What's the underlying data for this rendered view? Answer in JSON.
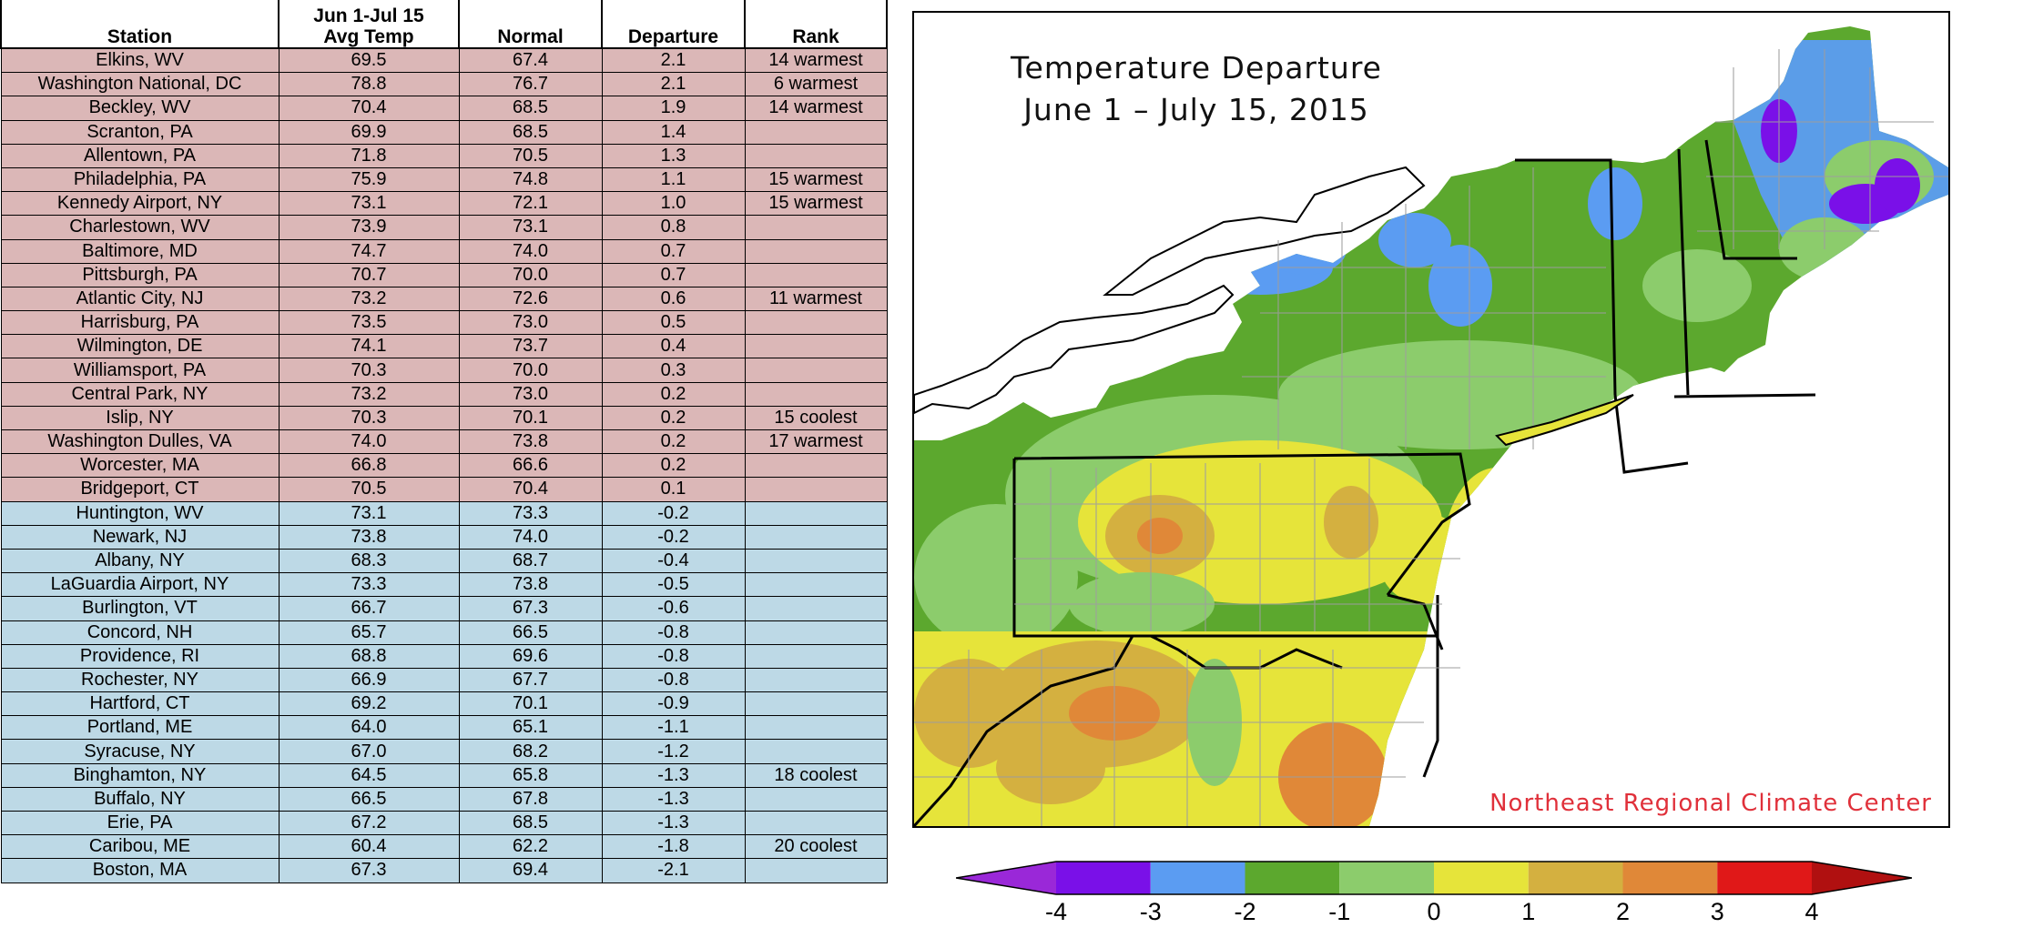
{
  "table": {
    "headers": {
      "station": "Station",
      "avg_line1": "Jun 1-Jul 15",
      "avg_line2": "Avg Temp",
      "normal": "Normal",
      "departure": "Departure",
      "rank": "Rank"
    },
    "rows": [
      {
        "station": "Elkins, WV",
        "avg": "69.5",
        "normal": "67.4",
        "departure": "2.1",
        "rank": "14 warmest",
        "group": "warm"
      },
      {
        "station": "Washington National, DC",
        "avg": "78.8",
        "normal": "76.7",
        "departure": "2.1",
        "rank": "6 warmest",
        "group": "warm"
      },
      {
        "station": "Beckley, WV",
        "avg": "70.4",
        "normal": "68.5",
        "departure": "1.9",
        "rank": "14 warmest",
        "group": "warm"
      },
      {
        "station": "Scranton, PA",
        "avg": "69.9",
        "normal": "68.5",
        "departure": "1.4",
        "rank": "",
        "group": "warm"
      },
      {
        "station": "Allentown, PA",
        "avg": "71.8",
        "normal": "70.5",
        "departure": "1.3",
        "rank": "",
        "group": "warm"
      },
      {
        "station": "Philadelphia, PA",
        "avg": "75.9",
        "normal": "74.8",
        "departure": "1.1",
        "rank": "15 warmest",
        "group": "warm"
      },
      {
        "station": "Kennedy Airport, NY",
        "avg": "73.1",
        "normal": "72.1",
        "departure": "1.0",
        "rank": "15 warmest",
        "group": "warm"
      },
      {
        "station": "Charlestown, WV",
        "avg": "73.9",
        "normal": "73.1",
        "departure": "0.8",
        "rank": "",
        "group": "warm"
      },
      {
        "station": "Baltimore, MD",
        "avg": "74.7",
        "normal": "74.0",
        "departure": "0.7",
        "rank": "",
        "group": "warm"
      },
      {
        "station": "Pittsburgh, PA",
        "avg": "70.7",
        "normal": "70.0",
        "departure": "0.7",
        "rank": "",
        "group": "warm"
      },
      {
        "station": "Atlantic City, NJ",
        "avg": "73.2",
        "normal": "72.6",
        "departure": "0.6",
        "rank": "11 warmest",
        "group": "warm"
      },
      {
        "station": "Harrisburg, PA",
        "avg": "73.5",
        "normal": "73.0",
        "departure": "0.5",
        "rank": "",
        "group": "warm"
      },
      {
        "station": "Wilmington, DE",
        "avg": "74.1",
        "normal": "73.7",
        "departure": "0.4",
        "rank": "",
        "group": "warm"
      },
      {
        "station": "Williamsport, PA",
        "avg": "70.3",
        "normal": "70.0",
        "departure": "0.3",
        "rank": "",
        "group": "warm"
      },
      {
        "station": "Central Park, NY",
        "avg": "73.2",
        "normal": "73.0",
        "departure": "0.2",
        "rank": "",
        "group": "warm"
      },
      {
        "station": "Islip, NY",
        "avg": "70.3",
        "normal": "70.1",
        "departure": "0.2",
        "rank": "15 coolest",
        "group": "warm"
      },
      {
        "station": "Washington Dulles, VA",
        "avg": "74.0",
        "normal": "73.8",
        "departure": "0.2",
        "rank": "17 warmest",
        "group": "warm"
      },
      {
        "station": "Worcester, MA",
        "avg": "66.8",
        "normal": "66.6",
        "departure": "0.2",
        "rank": "",
        "group": "warm"
      },
      {
        "station": "Bridgeport, CT",
        "avg": "70.5",
        "normal": "70.4",
        "departure": "0.1",
        "rank": "",
        "group": "warm"
      },
      {
        "station": "Huntington, WV",
        "avg": "73.1",
        "normal": "73.3",
        "departure": "-0.2",
        "rank": "",
        "group": "cool"
      },
      {
        "station": "Newark, NJ",
        "avg": "73.8",
        "normal": "74.0",
        "departure": "-0.2",
        "rank": "",
        "group": "cool"
      },
      {
        "station": "Albany, NY",
        "avg": "68.3",
        "normal": "68.7",
        "departure": "-0.4",
        "rank": "",
        "group": "cool"
      },
      {
        "station": "LaGuardia Airport, NY",
        "avg": "73.3",
        "normal": "73.8",
        "departure": "-0.5",
        "rank": "",
        "group": "cool"
      },
      {
        "station": "Burlington, VT",
        "avg": "66.7",
        "normal": "67.3",
        "departure": "-0.6",
        "rank": "",
        "group": "cool"
      },
      {
        "station": "Concord, NH",
        "avg": "65.7",
        "normal": "66.5",
        "departure": "-0.8",
        "rank": "",
        "group": "cool"
      },
      {
        "station": "Providence, RI",
        "avg": "68.8",
        "normal": "69.6",
        "departure": "-0.8",
        "rank": "",
        "group": "cool"
      },
      {
        "station": "Rochester, NY",
        "avg": "66.9",
        "normal": "67.7",
        "departure": "-0.8",
        "rank": "",
        "group": "cool"
      },
      {
        "station": "Hartford, CT",
        "avg": "69.2",
        "normal": "70.1",
        "departure": "-0.9",
        "rank": "",
        "group": "cool"
      },
      {
        "station": "Portland, ME",
        "avg": "64.0",
        "normal": "65.1",
        "departure": "-1.1",
        "rank": "",
        "group": "cool"
      },
      {
        "station": "Syracuse, NY",
        "avg": "67.0",
        "normal": "68.2",
        "departure": "-1.2",
        "rank": "",
        "group": "cool"
      },
      {
        "station": "Binghamton, NY",
        "avg": "64.5",
        "normal": "65.8",
        "departure": "-1.3",
        "rank": "18 coolest",
        "group": "cool"
      },
      {
        "station": "Buffalo, NY",
        "avg": "66.5",
        "normal": "67.8",
        "departure": "-1.3",
        "rank": "",
        "group": "cool"
      },
      {
        "station": "Erie, PA",
        "avg": "67.2",
        "normal": "68.5",
        "departure": "-1.3",
        "rank": "",
        "group": "cool"
      },
      {
        "station": "Caribou, ME",
        "avg": "60.4",
        "normal": "62.2",
        "departure": "-1.8",
        "rank": "20 coolest",
        "group": "cool"
      },
      {
        "station": "Boston, MA",
        "avg": "67.3",
        "normal": "69.4",
        "departure": "-2.1",
        "rank": "",
        "group": "cool"
      }
    ],
    "colors": {
      "warm_row": "#dbb7b7",
      "cool_row": "#bdd9e6"
    }
  },
  "map": {
    "title_line1": "Temperature Departure",
    "title_line2": "June 1 – July 15, 2015",
    "credit": "Northeast Regional Climate Center"
  },
  "legend": {
    "tick_labels": [
      "-4",
      "-3",
      "-2",
      "-1",
      "0",
      "1",
      "2",
      "3",
      "4"
    ],
    "colors": [
      "#9a28d8",
      "#7a10e8",
      "#5b9cf2",
      "#5ca82e",
      "#8ccc6c",
      "#e6e43a",
      "#d4b040",
      "#e08838",
      "#e01818",
      "#b01010"
    ]
  }
}
